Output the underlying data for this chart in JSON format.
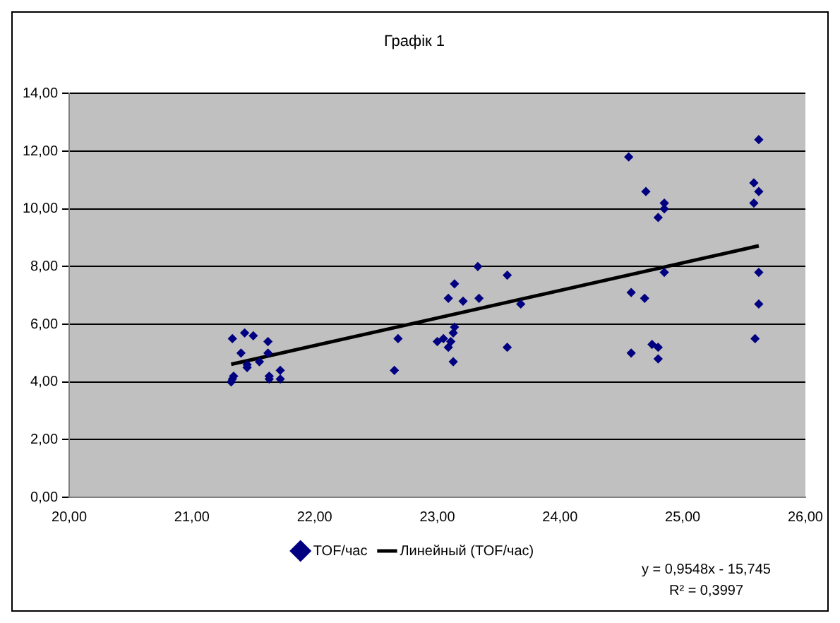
{
  "chart_data": {
    "type": "scatter",
    "title": "Графік 1",
    "marker": "diamond",
    "grid": "y",
    "legend": "bottom",
    "xlim": [
      20,
      26
    ],
    "xticks": [
      {
        "value": 20,
        "label": "20,00"
      },
      {
        "value": 21,
        "label": "21,00"
      },
      {
        "value": 22,
        "label": "22,00"
      },
      {
        "value": 23,
        "label": "23,00"
      },
      {
        "value": 24,
        "label": "24,00"
      },
      {
        "value": 25,
        "label": "25,00"
      },
      {
        "value": 26,
        "label": "26,00"
      }
    ],
    "ylim": [
      0,
      14
    ],
    "yticks": [
      {
        "value": 0,
        "label": "0,00"
      },
      {
        "value": 2,
        "label": "2,00"
      },
      {
        "value": 4,
        "label": "4,00"
      },
      {
        "value": 6,
        "label": "6,00"
      },
      {
        "value": 8,
        "label": "8,00"
      },
      {
        "value": 10,
        "label": "10,00"
      },
      {
        "value": 12,
        "label": "12,00"
      },
      {
        "value": 14,
        "label": "14,00"
      }
    ],
    "series": [
      {
        "name": "TOF/час",
        "type": "scatter",
        "color": "#000080",
        "x": [
          21.32,
          21.33,
          21.34,
          21.33,
          21.4,
          21.43,
          21.45,
          21.45,
          21.5,
          21.55,
          21.62,
          21.62,
          21.63,
          21.63,
          21.72,
          21.72,
          22.65,
          22.68,
          23.0,
          23.05,
          23.09,
          23.14,
          23.09,
          23.11,
          23.13,
          23.14,
          23.13,
          23.21,
          23.33,
          23.34,
          23.57,
          23.57,
          23.68,
          24.56,
          24.7,
          24.8,
          24.85,
          24.85,
          24.58,
          24.69,
          24.85,
          24.58,
          24.75,
          24.8,
          24.8,
          25.62,
          25.58,
          25.62,
          25.58,
          25.62,
          25.62,
          25.59
        ],
        "values": [
          4.0,
          4.1,
          4.2,
          5.5,
          5.0,
          5.7,
          4.5,
          4.6,
          5.6,
          4.7,
          5.4,
          5.0,
          4.2,
          4.1,
          4.4,
          4.1,
          4.4,
          5.5,
          5.4,
          5.5,
          6.9,
          7.4,
          5.2,
          5.4,
          5.7,
          5.9,
          4.7,
          6.8,
          8.0,
          6.9,
          7.7,
          5.2,
          6.7,
          11.8,
          10.6,
          9.7,
          10.2,
          10.0,
          7.1,
          6.9,
          7.8,
          5.0,
          5.3,
          5.2,
          4.8,
          12.4,
          10.9,
          10.6,
          10.2,
          7.8,
          6.7,
          5.5
        ]
      },
      {
        "name": "Линейный (TOF/час)",
        "type": "line",
        "color": "#000000",
        "marker": "none",
        "x": [
          21.32,
          25.62
        ],
        "values": [
          4.61,
          8.72
        ]
      }
    ],
    "annotations": [
      "y = 0,9548x - 15,745",
      "R² = 0,3997"
    ]
  }
}
